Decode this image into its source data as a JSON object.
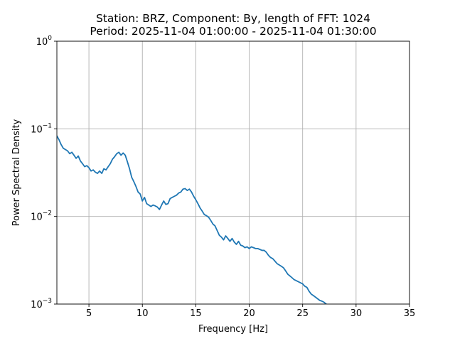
{
  "chart_data": {
    "type": "line",
    "title": "Station: BRZ, Component: By, length of FFT: 1024",
    "subtitle": "Period: 2025-11-04 01:00:00 - 2025-11-04 01:30:00",
    "xlabel": "Frequency [Hz]",
    "ylabel": "Power Spectral Density",
    "xlim": [
      2,
      35
    ],
    "ylim": [
      0.001,
      1
    ],
    "yscale": "log",
    "grid": true,
    "xticks": [
      5,
      10,
      15,
      20,
      25,
      30,
      35
    ],
    "xtick_labels": [
      "5",
      "10",
      "15",
      "20",
      "25",
      "30",
      "35"
    ],
    "yticks": [
      0.001,
      0.01,
      0.1,
      1
    ],
    "ytick_labels": [
      {
        "base": "10",
        "exp": "−3"
      },
      {
        "base": "10",
        "exp": "−2"
      },
      {
        "base": "10",
        "exp": "−1"
      },
      {
        "base": "10",
        "exp": "0"
      }
    ],
    "line_color": "#1f77b4",
    "series": [
      {
        "x": [
          2.0,
          2.2,
          2.4,
          2.6,
          2.8,
          3.0,
          3.2,
          3.4,
          3.6,
          3.8,
          4.0,
          4.2,
          4.4,
          4.6,
          4.8,
          5.0,
          5.2,
          5.4,
          5.6,
          5.8,
          6.0,
          6.2,
          6.4,
          6.6,
          6.8,
          7.0,
          7.2,
          7.4,
          7.6,
          7.8,
          8.0,
          8.2,
          8.4,
          8.6,
          8.8,
          9.0,
          9.2,
          9.4,
          9.6,
          9.8,
          10.0,
          10.2,
          10.4,
          10.6,
          10.8,
          11.0,
          11.2,
          11.4,
          11.6,
          11.8,
          12.0,
          12.2,
          12.4,
          12.6,
          12.8,
          13.0,
          13.2,
          13.4,
          13.6,
          13.8,
          14.0,
          14.2,
          14.4,
          14.6,
          14.8,
          15.0,
          15.2,
          15.4,
          15.6,
          15.8,
          16.0,
          16.2,
          16.4,
          16.6,
          16.8,
          17.0,
          17.2,
          17.4,
          17.6,
          17.8,
          18.0,
          18.2,
          18.4,
          18.6,
          18.8,
          19.0,
          19.2,
          19.4,
          19.6,
          19.8,
          20.0,
          20.2,
          20.4,
          20.6,
          20.8,
          21.0,
          21.2,
          21.4,
          21.6,
          21.8,
          22.0,
          22.2,
          22.4,
          22.6,
          22.8,
          23.0,
          23.2,
          23.4,
          23.6,
          23.8,
          24.0,
          24.2,
          24.4,
          24.6,
          24.8,
          25.0,
          25.2,
          25.4,
          25.6,
          25.8,
          26.0,
          26.2,
          26.4,
          26.6,
          26.8,
          27.0,
          27.2,
          27.4
        ],
        "y": [
          0.083,
          0.075,
          0.066,
          0.06,
          0.058,
          0.056,
          0.052,
          0.054,
          0.05,
          0.046,
          0.049,
          0.043,
          0.04,
          0.037,
          0.038,
          0.036,
          0.033,
          0.034,
          0.032,
          0.031,
          0.033,
          0.031,
          0.035,
          0.034,
          0.037,
          0.04,
          0.045,
          0.048,
          0.052,
          0.054,
          0.05,
          0.053,
          0.05,
          0.042,
          0.035,
          0.028,
          0.025,
          0.022,
          0.019,
          0.018,
          0.015,
          0.0165,
          0.014,
          0.0135,
          0.013,
          0.0135,
          0.0132,
          0.0128,
          0.012,
          0.0135,
          0.015,
          0.0137,
          0.014,
          0.016,
          0.0165,
          0.017,
          0.0175,
          0.0185,
          0.019,
          0.0205,
          0.0208,
          0.0198,
          0.0205,
          0.019,
          0.017,
          0.0155,
          0.014,
          0.0125,
          0.0115,
          0.0105,
          0.0102,
          0.0098,
          0.009,
          0.0082,
          0.0078,
          0.0069,
          0.0061,
          0.0058,
          0.0054,
          0.006,
          0.0056,
          0.0052,
          0.0056,
          0.0051,
          0.0048,
          0.0052,
          0.0047,
          0.0046,
          0.0044,
          0.0045,
          0.0043,
          0.0045,
          0.0044,
          0.0043,
          0.0043,
          0.0042,
          0.0041,
          0.0041,
          0.0039,
          0.0036,
          0.0034,
          0.0033,
          0.0031,
          0.0029,
          0.0028,
          0.0027,
          0.0026,
          0.0024,
          0.0022,
          0.0021,
          0.002,
          0.0019,
          0.00185,
          0.0018,
          0.00175,
          0.0017,
          0.0016,
          0.00155,
          0.0014,
          0.0013,
          0.00125,
          0.0012,
          0.00115,
          0.0011,
          0.00108,
          0.00105,
          0.001,
          0.00098
        ]
      }
    ]
  }
}
